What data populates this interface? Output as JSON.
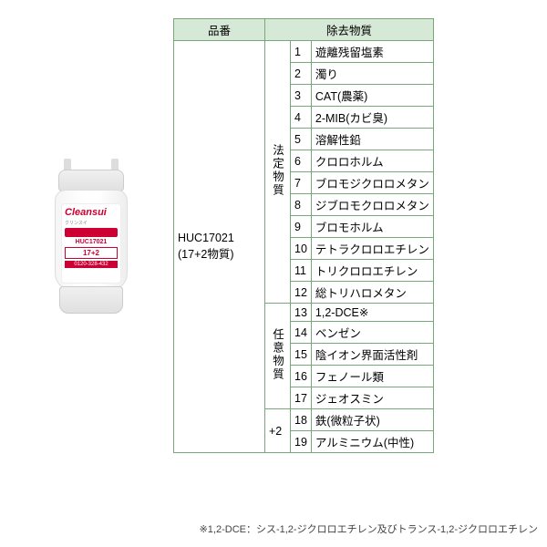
{
  "headers": {
    "model": "品番",
    "substances": "除去物質"
  },
  "model": {
    "code": "HUC17021",
    "note": "(17+2物質)"
  },
  "categories": {
    "legal": "法定物質",
    "optional": "任意物質",
    "plus": "+2"
  },
  "rows": [
    {
      "n": 1,
      "name": "遊離残留塩素"
    },
    {
      "n": 2,
      "name": "濁り"
    },
    {
      "n": 3,
      "name": "CAT(農薬)"
    },
    {
      "n": 4,
      "name": "2-MIB(カビ臭)"
    },
    {
      "n": 5,
      "name": "溶解性鉛"
    },
    {
      "n": 6,
      "name": "クロロホルム"
    },
    {
      "n": 7,
      "name": "ブロモジクロロメタン"
    },
    {
      "n": 8,
      "name": "ジブロモクロロメタン"
    },
    {
      "n": 9,
      "name": "ブロモホルム"
    },
    {
      "n": 10,
      "name": "テトラクロロエチレン"
    },
    {
      "n": 11,
      "name": "トリクロロエチレン"
    },
    {
      "n": 12,
      "name": "総トリハロメタン"
    },
    {
      "n": 13,
      "name": "1,2-DCE※"
    },
    {
      "n": 14,
      "name": "ベンゼン"
    },
    {
      "n": 15,
      "name": "陰イオン界面活性剤"
    },
    {
      "n": 16,
      "name": "フェノール類"
    },
    {
      "n": 17,
      "name": "ジェオスミン"
    },
    {
      "n": 18,
      "name": "鉄(微粒子状)"
    },
    {
      "n": 19,
      "name": "アルミニウム(中性)"
    }
  ],
  "footnote": "※1,2-DCE：シス-1,2-ジクロロエチレン及びトランス-1,2-ジクロロエチレン",
  "label": {
    "brand": "Cleansui",
    "sub": "クリンスイ",
    "code": "HUC17021",
    "box": "17+2",
    "tel": "0120-328-432"
  },
  "colors": {
    "border": "#7aa77a",
    "headerBg": "#d6e8d6",
    "brand": "#cc0033"
  }
}
